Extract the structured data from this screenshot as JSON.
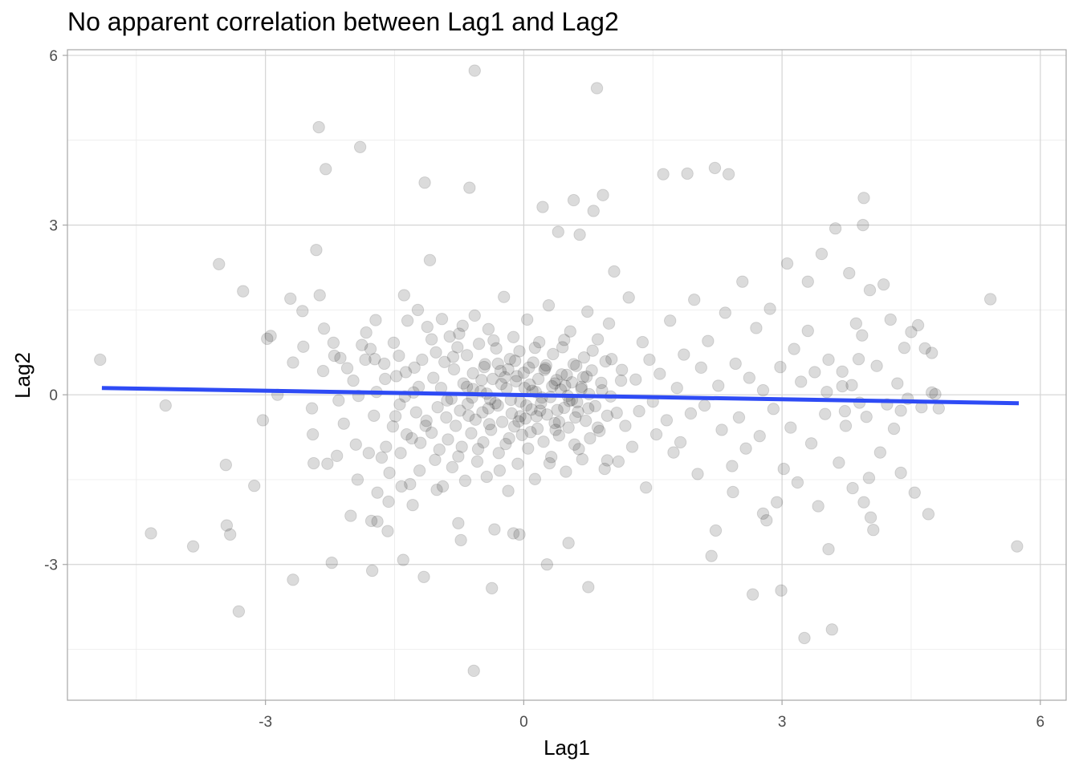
{
  "chart_data": {
    "type": "scatter",
    "title": "No apparent correlation between Lag1 and Lag2",
    "xlabel": "Lag1",
    "ylabel": "Lag2",
    "xlim": [
      -5.3,
      6.3
    ],
    "ylim": [
      -5.4,
      6.1
    ],
    "x_ticks": [
      -3,
      0,
      3,
      6
    ],
    "y_ticks": [
      -3,
      0,
      3,
      6
    ],
    "x_tick_labels": [
      "-3",
      "0",
      "3",
      "6"
    ],
    "y_tick_labels": [
      "-3",
      "0",
      "3",
      "6"
    ],
    "grid": true,
    "legend": "none",
    "point_color": "#000000",
    "point_alpha": 0.14,
    "trend_line": {
      "method": "linear",
      "color": "#2e4bf5",
      "x": [
        -4.9,
        5.75
      ],
      "y": [
        0.12,
        -0.15
      ]
    },
    "points": [
      [
        -4.92,
        0.62
      ],
      [
        -4.33,
        -2.45
      ],
      [
        -4.16,
        -0.19
      ],
      [
        -3.84,
        -2.68
      ],
      [
        -3.54,
        2.31
      ],
      [
        -3.46,
        -1.24
      ],
      [
        -3.45,
        -2.31
      ],
      [
        -3.41,
        -2.47
      ],
      [
        -3.13,
        -1.61
      ],
      [
        -3.31,
        -3.83
      ],
      [
        -3.26,
        1.83
      ],
      [
        -3.03,
        -0.45
      ],
      [
        -2.98,
        0.99
      ],
      [
        -2.94,
        1.04
      ],
      [
        -2.86,
        0.0
      ],
      [
        -2.71,
        1.7
      ],
      [
        -2.68,
        0.57
      ],
      [
        -2.68,
        -3.27
      ],
      [
        -2.57,
        1.48
      ],
      [
        -2.56,
        0.85
      ],
      [
        -2.46,
        -0.24
      ],
      [
        -2.45,
        -0.7
      ],
      [
        -2.44,
        -1.21
      ],
      [
        -2.41,
        2.56
      ],
      [
        -2.38,
        4.73
      ],
      [
        -2.37,
        1.76
      ],
      [
        -2.33,
        0.42
      ],
      [
        -2.32,
        1.17
      ],
      [
        -2.3,
        3.99
      ],
      [
        -2.28,
        -1.22
      ],
      [
        -2.23,
        -2.97
      ],
      [
        -2.21,
        0.92
      ],
      [
        -2.2,
        0.69
      ],
      [
        -2.17,
        -1.08
      ],
      [
        -2.15,
        -0.1
      ],
      [
        -2.13,
        0.65
      ],
      [
        -2.09,
        -0.51
      ],
      [
        -2.01,
        -2.14
      ],
      [
        -1.98,
        0.25
      ],
      [
        -1.95,
        -0.88
      ],
      [
        -1.92,
        -0.02
      ],
      [
        -1.9,
        4.38
      ],
      [
        -1.88,
        0.88
      ],
      [
        -1.84,
        0.62
      ],
      [
        -1.8,
        -1.03
      ],
      [
        -1.78,
        0.81
      ],
      [
        -1.77,
        -2.23
      ],
      [
        -1.76,
        -3.11
      ],
      [
        -1.74,
        -0.37
      ],
      [
        -1.73,
        0.63
      ],
      [
        -1.72,
        1.32
      ],
      [
        -1.7,
        -2.24
      ],
      [
        -1.7,
        -1.73
      ],
      [
        -1.65,
        -1.11
      ],
      [
        -1.62,
        0.55
      ],
      [
        -1.61,
        0.28
      ],
      [
        -1.58,
        -2.41
      ],
      [
        -1.57,
        -1.89
      ],
      [
        -1.56,
        -1.38
      ],
      [
        -1.52,
        -0.56
      ],
      [
        -1.49,
        -0.38
      ],
      [
        -1.48,
        0.33
      ],
      [
        -1.45,
        0.69
      ],
      [
        -1.43,
        -1.03
      ],
      [
        -1.42,
        -1.62
      ],
      [
        -1.4,
        -2.92
      ],
      [
        -1.39,
        1.76
      ],
      [
        -1.38,
        -0.03
      ],
      [
        -1.36,
        -0.7
      ],
      [
        -1.35,
        1.31
      ],
      [
        -1.32,
        -1.58
      ],
      [
        -1.3,
        -0.77
      ],
      [
        -1.28,
        0.04
      ],
      [
        -1.27,
        0.48
      ],
      [
        -1.25,
        -0.31
      ],
      [
        -1.23,
        1.5
      ],
      [
        -1.21,
        -1.34
      ],
      [
        -1.2,
        -0.85
      ],
      [
        -1.18,
        0.62
      ],
      [
        -1.16,
        -3.22
      ],
      [
        -1.15,
        3.75
      ],
      [
        -1.13,
        -0.46
      ],
      [
        -1.12,
        1.2
      ],
      [
        -1.09,
        2.38
      ],
      [
        -1.07,
        -0.67
      ],
      [
        -1.05,
        0.3
      ],
      [
        -1.03,
        -1.15
      ],
      [
        -1.02,
        0.75
      ],
      [
        -1.0,
        -0.22
      ],
      [
        -0.98,
        -0.97
      ],
      [
        -0.96,
        0.12
      ],
      [
        -0.94,
        -1.62
      ],
      [
        -0.92,
        0.58
      ],
      [
        -0.9,
        -0.4
      ],
      [
        -0.88,
        -0.79
      ],
      [
        -0.86,
        1.03
      ],
      [
        -0.84,
        -0.07
      ],
      [
        -0.83,
        -1.28
      ],
      [
        -0.81,
        0.45
      ],
      [
        -0.79,
        -0.55
      ],
      [
        -0.77,
        0.84
      ],
      [
        -0.75,
        1.08
      ],
      [
        -0.74,
        -0.28
      ],
      [
        -0.72,
        -0.92
      ],
      [
        -0.7,
        0.2
      ],
      [
        -0.68,
        -1.52
      ],
      [
        -0.66,
        0.7
      ],
      [
        -0.65,
        -0.16
      ],
      [
        -0.63,
        3.66
      ],
      [
        -0.61,
        -0.68
      ],
      [
        -0.59,
        0.38
      ],
      [
        -0.57,
        1.4
      ],
      [
        -0.56,
        -0.44
      ],
      [
        -0.54,
        -1.18
      ],
      [
        -0.52,
        0.9
      ],
      [
        -0.5,
        0.06
      ],
      [
        -0.48,
        -0.31
      ],
      [
        -0.47,
        -0.84
      ],
      [
        -0.45,
        0.54
      ],
      [
        -0.43,
        -1.45
      ],
      [
        -0.41,
        1.16
      ],
      [
        -0.39,
        -0.08
      ],
      [
        -0.38,
        -0.62
      ],
      [
        -0.36,
        0.28
      ],
      [
        -0.34,
        -2.38
      ],
      [
        -0.32,
        0.82
      ],
      [
        -0.3,
        -0.19
      ],
      [
        -0.29,
        -1.03
      ],
      [
        -0.27,
        0.42
      ],
      [
        -0.25,
        -0.48
      ],
      [
        -0.23,
        1.73
      ],
      [
        -0.21,
        -0.87
      ],
      [
        -0.2,
        0.11
      ],
      [
        -0.18,
        -1.7
      ],
      [
        -0.16,
        0.63
      ],
      [
        -0.14,
        -0.33
      ],
      [
        -0.12,
        1.02
      ],
      [
        -0.11,
        -0.56
      ],
      [
        -0.09,
        0.24
      ],
      [
        -0.07,
        -1.22
      ],
      [
        -0.05,
        0.77
      ],
      [
        -0.04,
        -0.12
      ],
      [
        -0.02,
        -0.71
      ],
      [
        0.0,
        0.39
      ],
      [
        0.02,
        -0.42
      ],
      [
        0.04,
        1.33
      ],
      [
        0.05,
        -0.95
      ],
      [
        0.07,
        0.18
      ],
      [
        0.09,
        -0.26
      ],
      [
        0.11,
        0.57
      ],
      [
        0.13,
        -1.49
      ],
      [
        0.14,
        0.05
      ],
      [
        0.16,
        -0.6
      ],
      [
        0.18,
        0.93
      ],
      [
        0.2,
        -0.15
      ],
      [
        0.22,
        3.32
      ],
      [
        0.23,
        -0.83
      ],
      [
        0.25,
        0.47
      ],
      [
        0.27,
        -0.35
      ],
      [
        0.29,
        1.58
      ],
      [
        0.31,
        -0.04
      ],
      [
        0.32,
        -1.1
      ],
      [
        0.34,
        0.72
      ],
      [
        0.36,
        -0.5
      ],
      [
        0.38,
        0.26
      ],
      [
        0.4,
        2.88
      ],
      [
        0.41,
        -0.72
      ],
      [
        0.43,
        0.09
      ],
      [
        0.45,
        0.84
      ],
      [
        0.47,
        -0.23
      ],
      [
        0.49,
        -1.36
      ],
      [
        0.5,
        0.35
      ],
      [
        0.52,
        -0.58
      ],
      [
        0.54,
        1.12
      ],
      [
        0.56,
        -0.09
      ],
      [
        0.58,
        3.44
      ],
      [
        0.59,
        -0.88
      ],
      [
        0.61,
        0.51
      ],
      [
        0.63,
        -0.3
      ],
      [
        0.65,
        2.83
      ],
      [
        0.67,
        0.14
      ],
      [
        0.68,
        -1.14
      ],
      [
        0.7,
        0.66
      ],
      [
        0.72,
        -0.46
      ],
      [
        0.74,
        1.47
      ],
      [
        0.76,
        0.01
      ],
      [
        0.77,
        -0.77
      ],
      [
        0.79,
        0.43
      ],
      [
        0.81,
        3.25
      ],
      [
        0.83,
        -0.2
      ],
      [
        0.85,
        5.42
      ],
      [
        0.86,
        0.98
      ],
      [
        0.88,
        -0.64
      ],
      [
        0.9,
        0.21
      ],
      [
        0.92,
        3.53
      ],
      [
        0.94,
        -1.31
      ],
      [
        0.95,
        0.59
      ],
      [
        0.97,
        -0.37
      ],
      [
        0.99,
        1.26
      ],
      [
        1.01,
        -0.03
      ],
      [
        -0.57,
        5.73
      ],
      [
        -0.58,
        -4.88
      ],
      [
        -0.37,
        -3.42
      ],
      [
        0.27,
        -3.0
      ],
      [
        0.52,
        -2.62
      ],
      [
        0.75,
        -3.4
      ],
      [
        -0.76,
        -2.27
      ],
      [
        -0.73,
        -2.57
      ],
      [
        -0.05,
        -2.47
      ],
      [
        -0.12,
        -2.45
      ],
      [
        1.05,
        2.18
      ],
      [
        1.1,
        -1.18
      ],
      [
        1.14,
        0.44
      ],
      [
        1.18,
        -0.55
      ],
      [
        1.22,
        1.72
      ],
      [
        1.26,
        -0.92
      ],
      [
        1.3,
        0.27
      ],
      [
        1.34,
        -0.29
      ],
      [
        1.38,
        0.93
      ],
      [
        1.42,
        -1.64
      ],
      [
        1.46,
        0.62
      ],
      [
        1.5,
        -0.12
      ],
      [
        1.54,
        -0.7
      ],
      [
        1.58,
        0.37
      ],
      [
        1.62,
        3.9
      ],
      [
        1.66,
        -0.45
      ],
      [
        1.7,
        1.31
      ],
      [
        1.74,
        -1.02
      ],
      [
        1.78,
        0.12
      ],
      [
        1.82,
        -0.84
      ],
      [
        1.86,
        0.71
      ],
      [
        1.9,
        3.91
      ],
      [
        1.94,
        -0.33
      ],
      [
        1.98,
        1.68
      ],
      [
        2.02,
        -1.4
      ],
      [
        2.06,
        0.48
      ],
      [
        2.1,
        -0.19
      ],
      [
        2.14,
        0.95
      ],
      [
        2.18,
        -2.85
      ],
      [
        2.22,
        4.01
      ],
      [
        2.26,
        0.16
      ],
      [
        2.3,
        -0.62
      ],
      [
        2.34,
        1.45
      ],
      [
        2.38,
        3.9
      ],
      [
        2.42,
        -1.26
      ],
      [
        2.46,
        0.55
      ],
      [
        2.5,
        -0.4
      ],
      [
        2.54,
        2.0
      ],
      [
        2.58,
        -0.95
      ],
      [
        2.62,
        0.3
      ],
      [
        2.66,
        -3.53
      ],
      [
        2.7,
        1.18
      ],
      [
        2.74,
        -0.73
      ],
      [
        2.78,
        0.08
      ],
      [
        2.82,
        -2.22
      ],
      [
        2.86,
        1.52
      ],
      [
        2.9,
        -0.25
      ],
      [
        2.94,
        -1.9
      ],
      [
        2.98,
        0.49
      ],
      [
        3.02,
        -1.31
      ],
      [
        3.06,
        2.32
      ],
      [
        3.1,
        -0.58
      ],
      [
        3.14,
        0.81
      ],
      [
        3.18,
        -1.55
      ],
      [
        3.22,
        0.23
      ],
      [
        3.26,
        -4.3
      ],
      [
        3.3,
        1.13
      ],
      [
        3.34,
        -0.86
      ],
      [
        3.38,
        0.4
      ],
      [
        3.42,
        -1.97
      ],
      [
        3.46,
        2.49
      ],
      [
        3.5,
        -0.34
      ],
      [
        3.54,
        0.62
      ],
      [
        3.58,
        -4.15
      ],
      [
        3.62,
        2.94
      ],
      [
        3.66,
        -1.2
      ],
      [
        3.7,
        0.15
      ],
      [
        3.74,
        -0.55
      ],
      [
        3.78,
        2.15
      ],
      [
        3.82,
        -1.65
      ],
      [
        3.86,
        1.26
      ],
      [
        3.9,
        -0.14
      ],
      [
        3.94,
        3.0
      ],
      [
        3.98,
        -0.39
      ],
      [
        4.02,
        1.85
      ],
      [
        4.06,
        -2.39
      ],
      [
        4.1,
        0.51
      ],
      [
        4.14,
        -1.02
      ],
      [
        4.18,
        1.95
      ],
      [
        4.22,
        -0.17
      ],
      [
        4.26,
        1.33
      ],
      [
        4.3,
        -0.6
      ],
      [
        4.34,
        0.2
      ],
      [
        4.38,
        -1.38
      ],
      [
        4.42,
        0.83
      ],
      [
        4.46,
        -0.07
      ],
      [
        4.5,
        1.11
      ],
      [
        4.54,
        -1.73
      ],
      [
        4.58,
        1.23
      ],
      [
        4.62,
        -0.22
      ],
      [
        4.66,
        0.82
      ],
      [
        4.7,
        -2.11
      ],
      [
        4.74,
        0.04
      ],
      [
        4.78,
        0.01
      ],
      [
        4.82,
        -0.24
      ],
      [
        3.3,
        2.0
      ],
      [
        3.52,
        0.05
      ],
      [
        3.7,
        0.41
      ],
      [
        3.81,
        0.17
      ],
      [
        3.89,
        0.63
      ],
      [
        3.73,
        -0.29
      ],
      [
        3.93,
        1.05
      ],
      [
        3.95,
        -1.9
      ],
      [
        3.95,
        3.48
      ],
      [
        4.01,
        -1.47
      ],
      [
        4.03,
        -2.17
      ],
      [
        4.38,
        -0.28
      ],
      [
        4.74,
        0.74
      ],
      [
        5.42,
        1.69
      ],
      [
        5.73,
        -2.68
      ],
      [
        3.54,
        -2.73
      ],
      [
        2.99,
        -3.46
      ],
      [
        2.78,
        -2.1
      ],
      [
        2.43,
        -1.72
      ],
      [
        2.23,
        -2.4
      ],
      [
        -2.05,
        0.47
      ],
      [
        -1.93,
        -1.5
      ],
      [
        -1.83,
        1.1
      ],
      [
        -1.71,
        0.05
      ],
      [
        -1.6,
        -0.92
      ],
      [
        -1.51,
        0.92
      ],
      [
        -1.44,
        -0.17
      ],
      [
        -1.37,
        0.4
      ],
      [
        -1.29,
        -1.95
      ],
      [
        -1.22,
        0.14
      ],
      [
        -1.14,
        -0.55
      ],
      [
        -1.07,
        0.98
      ],
      [
        -1.01,
        -1.68
      ],
      [
        -0.95,
        1.34
      ],
      [
        -0.89,
        -0.1
      ],
      [
        -0.82,
        0.67
      ],
      [
        -0.76,
        -1.09
      ],
      [
        -0.71,
        1.22
      ],
      [
        -0.64,
        -0.37
      ],
      [
        -0.59,
        0.1
      ],
      [
        -0.53,
        -0.96
      ],
      [
        -0.46,
        0.49
      ],
      [
        -0.41,
        -0.24
      ],
      [
        -0.35,
        0.96
      ],
      [
        -0.28,
        -1.34
      ],
      [
        -0.22,
        0.31
      ],
      [
        -0.17,
        -0.77
      ],
      [
        -0.1,
        0.6
      ],
      [
        -0.04,
        -0.38
      ],
      [
        0.01,
        0.12
      ],
      [
        0.08,
        -0.66
      ],
      [
        0.13,
        0.83
      ],
      [
        0.19,
        -0.28
      ],
      [
        0.24,
        0.44
      ],
      [
        0.3,
        -1.21
      ],
      [
        0.36,
        0.2
      ],
      [
        0.41,
        -0.48
      ],
      [
        0.47,
        0.97
      ],
      [
        0.53,
        -0.11
      ],
      [
        0.58,
        0.54
      ],
      [
        0.64,
        -0.96
      ],
      [
        0.69,
        0.31
      ],
      [
        0.75,
        -0.24
      ],
      [
        0.8,
        0.78
      ],
      [
        0.86,
        -0.58
      ],
      [
        0.91,
        0.08
      ],
      [
        0.97,
        -1.16
      ],
      [
        1.02,
        0.63
      ],
      [
        1.08,
        -0.32
      ],
      [
        1.13,
        0.25
      ],
      [
        -0.66,
        0.14
      ],
      [
        -0.6,
        -0.05
      ],
      [
        -0.49,
        0.26
      ],
      [
        -0.43,
        0.02
      ],
      [
        -0.33,
        -0.15
      ],
      [
        -0.26,
        0.19
      ],
      [
        -0.15,
        -0.09
      ],
      [
        -0.08,
        0.33
      ],
      [
        0.03,
        -0.19
      ],
      [
        0.1,
        0.07
      ],
      [
        0.17,
        0.28
      ],
      [
        0.21,
        -0.05
      ],
      [
        0.33,
        0.15
      ],
      [
        0.39,
        -0.27
      ],
      [
        0.44,
        0.36
      ],
      [
        0.51,
        -0.02
      ],
      [
        0.56,
        0.22
      ],
      [
        0.62,
        -0.13
      ],
      [
        0.67,
        0.1
      ],
      [
        0.73,
        0.32
      ],
      [
        -0.18,
        0.45
      ],
      [
        -0.06,
        -0.47
      ],
      [
        0.06,
        0.48
      ],
      [
        0.15,
        -0.38
      ],
      [
        0.26,
        0.52
      ],
      [
        0.37,
        -0.62
      ],
      [
        0.48,
        0.16
      ],
      [
        0.6,
        -0.4
      ],
      [
        -0.3,
        0.55
      ],
      [
        -0.4,
        -0.52
      ]
    ]
  }
}
